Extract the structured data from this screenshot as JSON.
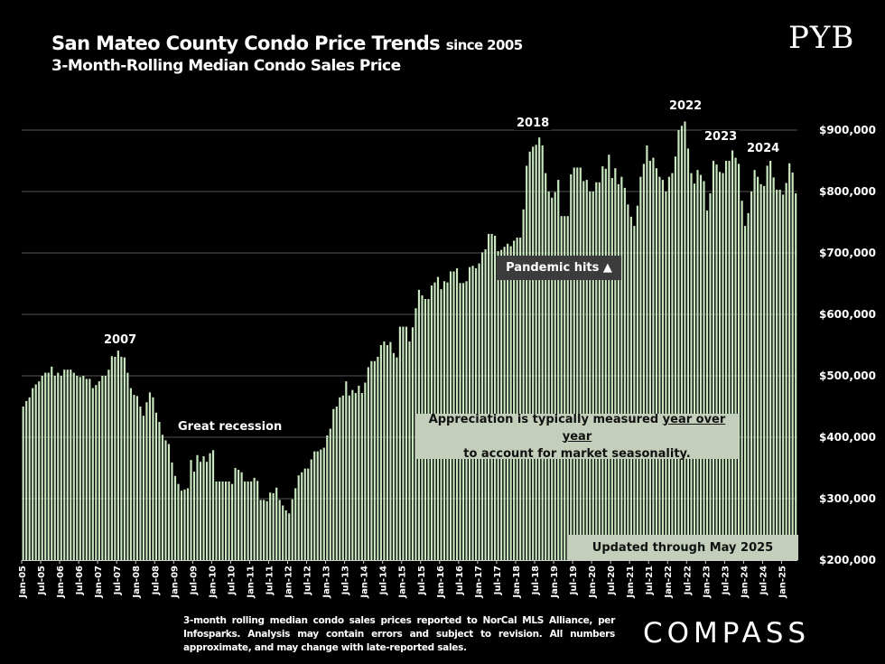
{
  "header": {
    "title": "San Mateo County Condo Price Trends",
    "title_suffix": "since 2005",
    "subtitle": "3-Month-Rolling Median Condo Sales Price"
  },
  "logos": {
    "top_right": "PYB",
    "bottom_right": "COMPASS"
  },
  "footnote": "3-month rolling median condo sales prices reported to NorCal MLS Alliance, per Infosparks. Analysis may contain errors and subject to revision. All numbers approximate, and may change with late-reported sales.",
  "annotations": {
    "y2007": "2007",
    "recession": "Great recession",
    "y2018": "2018",
    "y2022": "2022",
    "y2023": "2023",
    "y2024": "2024",
    "pandemic": "Pandemic hits ▲",
    "apprec_line1_pre": "Appreciation is typically measured ",
    "apprec_line1_u": "year over year",
    "apprec_line2": "to account for market seasonality.",
    "updated": "Updated through May 2025"
  },
  "colors": {
    "bar": "#c9e8bf",
    "grid": "#555555",
    "background": "#000000"
  },
  "chart_data": {
    "type": "bar",
    "title": "San Mateo County Condo Price Trends since 2005",
    "subtitle": "3-Month-Rolling Median Condo Sales Price",
    "xlabel": "",
    "ylabel": "",
    "ylim": [
      200000,
      900000
    ],
    "grid": true,
    "x_start": "Jan-05",
    "x_end": "May-25",
    "frequency": "monthly",
    "yticks": [
      "$200,000",
      "$300,000",
      "$400,000",
      "$500,000",
      "$600,000",
      "$700,000",
      "$800,000",
      "$900,000"
    ],
    "ytick_values": [
      200000,
      300000,
      400000,
      500000,
      600000,
      700000,
      800000,
      900000
    ],
    "xticks": [
      "Jan-05",
      "Jul-05",
      "Jan-06",
      "Jul-06",
      "Jan-07",
      "Jul-07",
      "Jan-08",
      "Jul-08",
      "Jan-09",
      "Jul-09",
      "Jan-10",
      "Jul-10",
      "Jan-11",
      "Jul-11",
      "Jan-12",
      "Jul-12",
      "Jan-13",
      "Jul-13",
      "Jan-14",
      "Jul-14",
      "Jan-15",
      "Jul-15",
      "Jan-16",
      "Jul-16",
      "Jan-17",
      "Jul-17",
      "Jan-18",
      "Jul-18",
      "Jan-19",
      "Jul-19",
      "Jan-20",
      "Jul-20",
      "Jan-21",
      "Jul-21",
      "Jan-22",
      "Jul-22",
      "Jan-23",
      "Jul-23",
      "Jan-24",
      "Jul-24",
      "Jan-25"
    ],
    "values_thousands": [
      450,
      459,
      465,
      480,
      486,
      491,
      500,
      505,
      505,
      515,
      500,
      505,
      500,
      510,
      510,
      510,
      505,
      500,
      498,
      500,
      495,
      495,
      480,
      485,
      491,
      500,
      500,
      510,
      532,
      531,
      541,
      531,
      530,
      505,
      480,
      469,
      467,
      450,
      435,
      457,
      473,
      465,
      440,
      425,
      404,
      395,
      389,
      359,
      337,
      324,
      313,
      315,
      317,
      363,
      344,
      371,
      360,
      369,
      360,
      374,
      379,
      328,
      328,
      328,
      328,
      328,
      324,
      350,
      347,
      343,
      328,
      328,
      328,
      334,
      329,
      298,
      298,
      296,
      310,
      309,
      318,
      298,
      289,
      281,
      276,
      299,
      317,
      338,
      343,
      349,
      349,
      364,
      377,
      377,
      380,
      383,
      403,
      414,
      446,
      450,
      465,
      468,
      491,
      468,
      477,
      472,
      484,
      472,
      489,
      514,
      524,
      524,
      531,
      550,
      556,
      550,
      555,
      537,
      530,
      580,
      580,
      580,
      556,
      579,
      610,
      640,
      631,
      625,
      625,
      647,
      652,
      661,
      641,
      654,
      652,
      670,
      670,
      675,
      651,
      651,
      654,
      677,
      679,
      675,
      683,
      701,
      706,
      731,
      731,
      728,
      703,
      705,
      710,
      715,
      711,
      720,
      725,
      725,
      771,
      842,
      865,
      873,
      876,
      888,
      875,
      830,
      800,
      790,
      799,
      819,
      760,
      760,
      760,
      828,
      839,
      839,
      839,
      817,
      819,
      800,
      800,
      815,
      815,
      841,
      837,
      860,
      822,
      838,
      812,
      824,
      806,
      779,
      759,
      744,
      777,
      824,
      845,
      875,
      850,
      855,
      838,
      824,
      819,
      800,
      824,
      830,
      857,
      900,
      907,
      914,
      870,
      830,
      813,
      835,
      827,
      817,
      769,
      797,
      850,
      844,
      832,
      830,
      850,
      850,
      867,
      855,
      845,
      785,
      744,
      765,
      800,
      835,
      824,
      812,
      809,
      842,
      850,
      823,
      803,
      803,
      795,
      814,
      846,
      831,
      797
    ]
  }
}
